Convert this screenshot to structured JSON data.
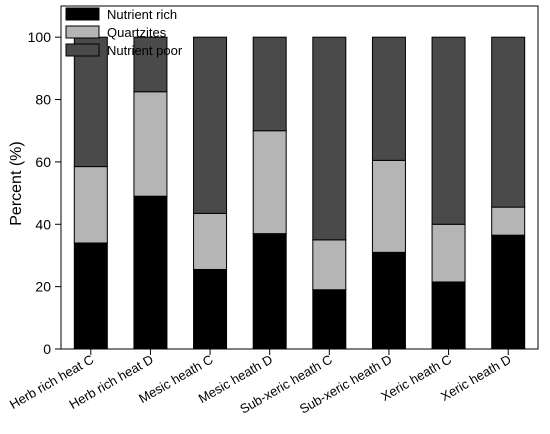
{
  "chart_data": {
    "type": "bar",
    "stacked": true,
    "categories": [
      "Herb rich heat C",
      "Herb rich heat D",
      "Mesic heath C",
      "Mesic heath D",
      "Sub-xeric heath C",
      "Sub-xeric heath D",
      "Xeric heath C",
      "Xeric heath D"
    ],
    "series": [
      {
        "name": "Nutrient rich",
        "color": "#000000",
        "values": [
          34,
          49,
          25.5,
          37,
          19,
          31,
          21.5,
          36.5
        ]
      },
      {
        "name": "Quartzites",
        "color": "#b5b5b5",
        "values": [
          24.5,
          33.5,
          18,
          33,
          16,
          29.5,
          18.5,
          9
        ]
      },
      {
        "name": "Nutrient poor",
        "color": "#4a4a4a",
        "values": [
          41.5,
          17.5,
          56.5,
          30,
          65,
          39.5,
          60,
          54.5
        ]
      }
    ],
    "ylabel": "Percent (%)",
    "xlabel": "",
    "title": "",
    "ylim": [
      0,
      110
    ],
    "yticks": [
      0,
      20,
      40,
      60,
      80,
      100
    ],
    "legend_position": "top-left",
    "grid": false
  }
}
